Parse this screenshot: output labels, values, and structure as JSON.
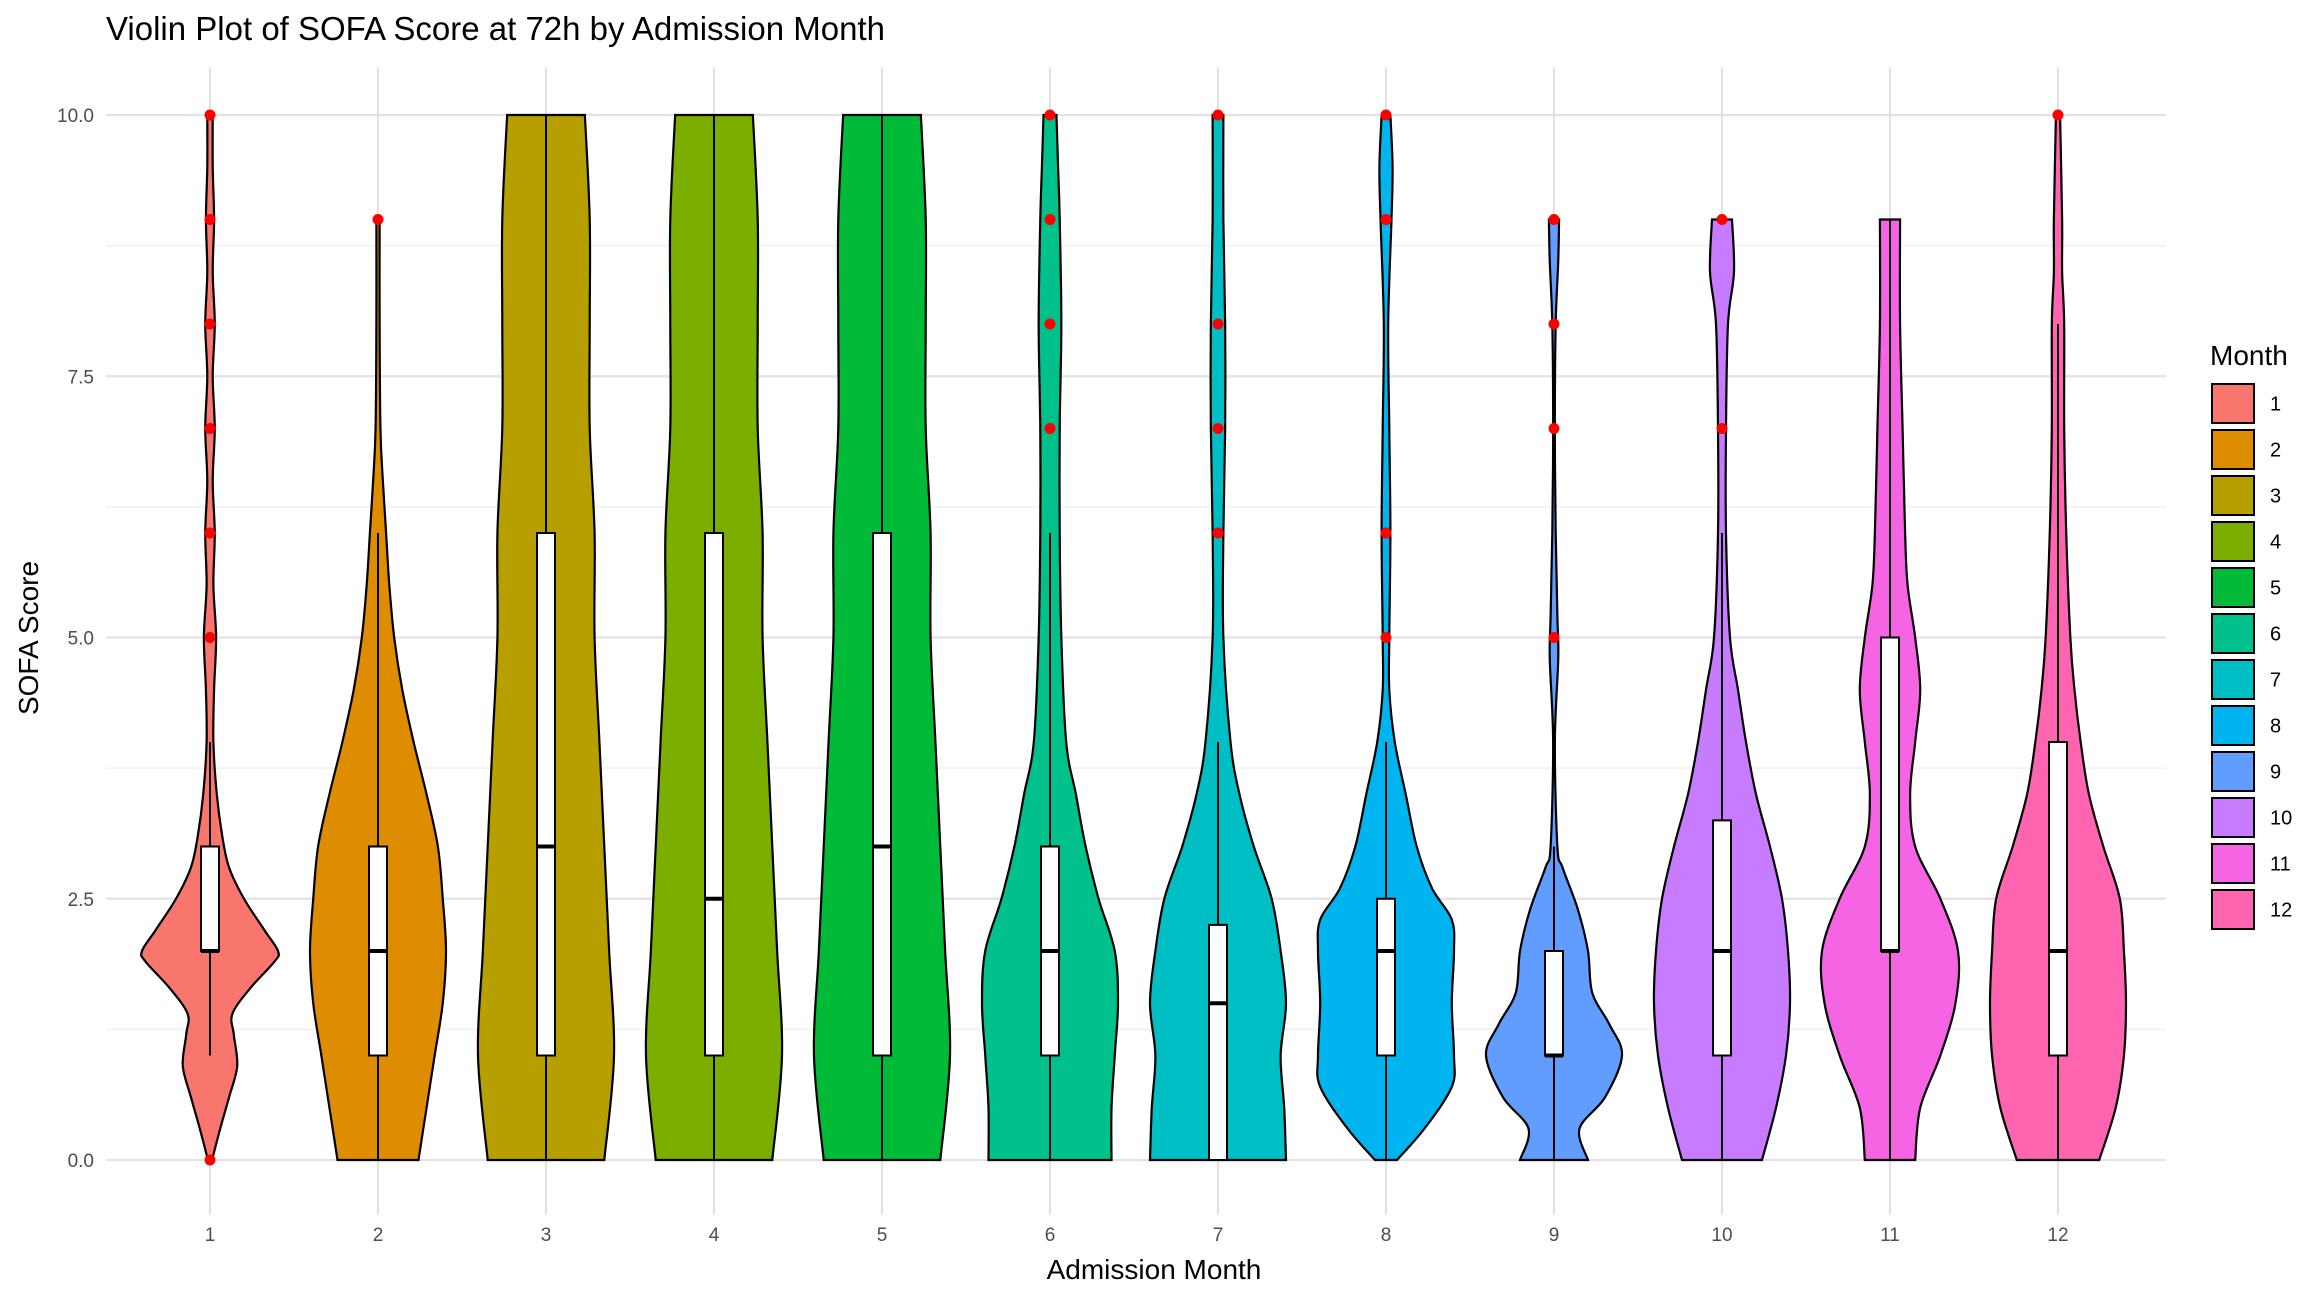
{
  "chart_data": {
    "type": "violin",
    "title": "Violin Plot of SOFA Score at 72h by Admission Month",
    "xlabel": "Admission Month",
    "ylabel": "SOFA Score",
    "ylim": [
      -0.7,
      10.45
    ],
    "y_ticks": [
      "0.0",
      "2.5",
      "5.0",
      "7.5",
      "10.0"
    ],
    "y_tick_values": [
      0,
      2.5,
      5,
      7.5,
      10
    ],
    "grid": true,
    "legend": {
      "title": "Month",
      "position": "right",
      "entries": [
        "1",
        "2",
        "3",
        "4",
        "5",
        "6",
        "7",
        "8",
        "9",
        "10",
        "11",
        "12"
      ]
    },
    "outlier_color": "#ff0000",
    "series": [
      {
        "category": "1",
        "color": "#F8766D",
        "box": {
          "min": 1,
          "q1": 2,
          "median": 2,
          "q3": 3,
          "max": 4
        },
        "outliers": [
          0,
          5,
          6,
          7,
          8,
          9,
          10
        ],
        "density": [
          [
            0,
            0.03
          ],
          [
            0.3,
            0.15
          ],
          [
            0.6,
            0.28
          ],
          [
            0.9,
            0.4
          ],
          [
            1.2,
            0.35
          ],
          [
            1.4,
            0.33
          ],
          [
            1.65,
            0.6
          ],
          [
            1.9,
            0.95
          ],
          [
            2.0,
            1.0
          ],
          [
            2.2,
            0.8
          ],
          [
            2.5,
            0.5
          ],
          [
            2.8,
            0.28
          ],
          [
            3.1,
            0.18
          ],
          [
            3.5,
            0.1
          ],
          [
            4.0,
            0.05
          ],
          [
            4.5,
            0.06
          ],
          [
            5.0,
            0.09
          ],
          [
            5.5,
            0.05
          ],
          [
            6.0,
            0.07
          ],
          [
            6.5,
            0.04
          ],
          [
            7.0,
            0.07
          ],
          [
            7.5,
            0.04
          ],
          [
            8.0,
            0.07
          ],
          [
            8.5,
            0.04
          ],
          [
            9.0,
            0.06
          ],
          [
            9.5,
            0.04
          ],
          [
            10,
            0.04
          ]
        ]
      },
      {
        "category": "2",
        "color": "#DE8C00",
        "box": {
          "min": 0,
          "q1": 1,
          "median": 2,
          "q3": 3,
          "max": 6
        },
        "outliers": [
          9
        ],
        "density": [
          [
            0,
            0.25
          ],
          [
            0.5,
            0.3
          ],
          [
            1.0,
            0.35
          ],
          [
            1.5,
            0.4
          ],
          [
            2.0,
            0.42
          ],
          [
            2.5,
            0.4
          ],
          [
            3.0,
            0.37
          ],
          [
            3.5,
            0.3
          ],
          [
            4.0,
            0.22
          ],
          [
            4.5,
            0.15
          ],
          [
            5.0,
            0.1
          ],
          [
            5.5,
            0.07
          ],
          [
            6.0,
            0.05
          ],
          [
            6.5,
            0.03
          ],
          [
            7.0,
            0.015
          ],
          [
            8.0,
            0.01
          ],
          [
            9.0,
            0.01
          ]
        ]
      },
      {
        "category": "3",
        "color": "#B79F00",
        "box": {
          "min": 0,
          "q1": 1,
          "median": 3,
          "q3": 6,
          "max": 10
        },
        "outliers": [],
        "density": [
          [
            0,
            0.12
          ],
          [
            1,
            0.14
          ],
          [
            2,
            0.13
          ],
          [
            3,
            0.12
          ],
          [
            4,
            0.11
          ],
          [
            5,
            0.1
          ],
          [
            6,
            0.1
          ],
          [
            7,
            0.09
          ],
          [
            8,
            0.09
          ],
          [
            9,
            0.09
          ],
          [
            10,
            0.08
          ]
        ]
      },
      {
        "category": "4",
        "color": "#7CAE00",
        "box": {
          "min": 0,
          "q1": 1,
          "median": 2.5,
          "q3": 6,
          "max": 10
        },
        "outliers": [],
        "density": [
          [
            0,
            0.12
          ],
          [
            1,
            0.14
          ],
          [
            2,
            0.13
          ],
          [
            3,
            0.12
          ],
          [
            4,
            0.11
          ],
          [
            5,
            0.1
          ],
          [
            6,
            0.1
          ],
          [
            7,
            0.09
          ],
          [
            8,
            0.09
          ],
          [
            9,
            0.09
          ],
          [
            10,
            0.08
          ]
        ]
      },
      {
        "category": "5",
        "color": "#00BA38",
        "box": {
          "min": 0,
          "q1": 1,
          "median": 3,
          "q3": 6,
          "max": 10
        },
        "outliers": [],
        "density": [
          [
            0,
            0.12
          ],
          [
            1,
            0.14
          ],
          [
            2,
            0.13
          ],
          [
            3,
            0.12
          ],
          [
            4,
            0.11
          ],
          [
            5,
            0.1
          ],
          [
            6,
            0.1
          ],
          [
            7,
            0.09
          ],
          [
            8,
            0.09
          ],
          [
            9,
            0.09
          ],
          [
            10,
            0.08
          ]
        ]
      },
      {
        "category": "6",
        "color": "#00C08B",
        "box": {
          "min": 0,
          "q1": 1,
          "median": 2,
          "q3": 3,
          "max": 6
        },
        "outliers": [
          7,
          8,
          9,
          10
        ],
        "density": [
          [
            0,
            0.38
          ],
          [
            0.5,
            0.38
          ],
          [
            1.0,
            0.4
          ],
          [
            1.5,
            0.42
          ],
          [
            2.0,
            0.4
          ],
          [
            2.5,
            0.3
          ],
          [
            3.0,
            0.22
          ],
          [
            3.5,
            0.16
          ],
          [
            4.0,
            0.1
          ],
          [
            5.0,
            0.07
          ],
          [
            6.0,
            0.06
          ],
          [
            7.0,
            0.06
          ],
          [
            8.0,
            0.07
          ],
          [
            9.0,
            0.06
          ],
          [
            9.5,
            0.05
          ],
          [
            10,
            0.04
          ]
        ]
      },
      {
        "category": "7",
        "color": "#00BFC4",
        "box": {
          "min": 0,
          "q1": 0,
          "median": 1.5,
          "q3": 2.25,
          "max": 4
        },
        "outliers": [
          6,
          7,
          8,
          10
        ],
        "density": [
          [
            0,
            0.38
          ],
          [
            0.5,
            0.37
          ],
          [
            1.0,
            0.35
          ],
          [
            1.5,
            0.38
          ],
          [
            2.0,
            0.35
          ],
          [
            2.5,
            0.3
          ],
          [
            3.0,
            0.2
          ],
          [
            3.5,
            0.12
          ],
          [
            4.0,
            0.07
          ],
          [
            5.0,
            0.03
          ],
          [
            6.0,
            0.03
          ],
          [
            7.0,
            0.04
          ],
          [
            8.0,
            0.04
          ],
          [
            9.0,
            0.03
          ],
          [
            10,
            0.03
          ]
        ]
      },
      {
        "category": "8",
        "color": "#00B4F0",
        "box": {
          "min": 0,
          "q1": 1,
          "median": 2,
          "q3": 2.5,
          "max": 4
        },
        "outliers": [
          5,
          6,
          9,
          10
        ],
        "density": [
          [
            0,
            0.1
          ],
          [
            0.3,
            0.35
          ],
          [
            0.7,
            0.6
          ],
          [
            1.0,
            0.62
          ],
          [
            1.5,
            0.6
          ],
          [
            2.0,
            0.62
          ],
          [
            2.3,
            0.6
          ],
          [
            2.6,
            0.42
          ],
          [
            3.0,
            0.28
          ],
          [
            3.5,
            0.18
          ],
          [
            4.0,
            0.08
          ],
          [
            4.5,
            0.03
          ],
          [
            5.0,
            0.03
          ],
          [
            6.0,
            0.04
          ],
          [
            7.0,
            0.03
          ],
          [
            8.0,
            0.02
          ],
          [
            9.0,
            0.05
          ],
          [
            9.5,
            0.06
          ],
          [
            10,
            0.04
          ]
        ]
      },
      {
        "category": "9",
        "color": "#619CFF",
        "box": {
          "min": 0,
          "q1": 1,
          "median": 1,
          "q3": 2,
          "max": 3
        },
        "outliers": [
          5,
          7,
          8,
          9
        ],
        "density": [
          [
            0,
            0.4
          ],
          [
            0.3,
            0.3
          ],
          [
            0.6,
            0.6
          ],
          [
            1.0,
            0.8
          ],
          [
            1.3,
            0.65
          ],
          [
            1.6,
            0.45
          ],
          [
            2.0,
            0.4
          ],
          [
            2.4,
            0.28
          ],
          [
            2.8,
            0.1
          ],
          [
            3.0,
            0.04
          ],
          [
            4.0,
            0.01
          ],
          [
            4.8,
            0.05
          ],
          [
            5.2,
            0.04
          ],
          [
            6.0,
            0.02
          ],
          [
            7.0,
            0.01
          ],
          [
            8.0,
            0.02
          ],
          [
            8.6,
            0.05
          ],
          [
            9.0,
            0.06
          ]
        ]
      },
      {
        "category": "10",
        "color": "#C77CFF",
        "box": {
          "min": 0,
          "q1": 1,
          "median": 2,
          "q3": 3.25,
          "max": 6
        },
        "outliers": [
          7,
          9
        ],
        "density": [
          [
            0,
            0.2
          ],
          [
            0.5,
            0.27
          ],
          [
            1.0,
            0.32
          ],
          [
            1.5,
            0.34
          ],
          [
            2.0,
            0.33
          ],
          [
            2.5,
            0.3
          ],
          [
            3.0,
            0.24
          ],
          [
            3.5,
            0.17
          ],
          [
            4.0,
            0.12
          ],
          [
            4.5,
            0.08
          ],
          [
            5.0,
            0.04
          ],
          [
            6.0,
            0.02
          ],
          [
            7.0,
            0.02
          ],
          [
            8.0,
            0.03
          ],
          [
            8.5,
            0.06
          ],
          [
            9.0,
            0.05
          ]
        ]
      },
      {
        "category": "11",
        "color": "#F564E3",
        "box": {
          "min": 0,
          "q1": 2,
          "median": 2,
          "q3": 5,
          "max": 9
        },
        "outliers": [],
        "density": [
          [
            0,
            0.1
          ],
          [
            0.5,
            0.12
          ],
          [
            1.0,
            0.2
          ],
          [
            1.5,
            0.26
          ],
          [
            2.0,
            0.27
          ],
          [
            2.5,
            0.2
          ],
          [
            3.0,
            0.1
          ],
          [
            3.5,
            0.08
          ],
          [
            4.0,
            0.1
          ],
          [
            4.5,
            0.12
          ],
          [
            5.0,
            0.1
          ],
          [
            5.5,
            0.07
          ],
          [
            6.0,
            0.06
          ],
          [
            7.0,
            0.05
          ],
          [
            8.0,
            0.04
          ],
          [
            9.0,
            0.04
          ]
        ]
      },
      {
        "category": "12",
        "color": "#FF64B0",
        "box": {
          "min": 0,
          "q1": 1,
          "median": 2,
          "q3": 4,
          "max": 8
        },
        "outliers": [
          10
        ],
        "density": [
          [
            0,
            0.2
          ],
          [
            0.5,
            0.28
          ],
          [
            1.0,
            0.32
          ],
          [
            1.5,
            0.33
          ],
          [
            2.0,
            0.32
          ],
          [
            2.5,
            0.3
          ],
          [
            3.0,
            0.22
          ],
          [
            3.5,
            0.15
          ],
          [
            4.0,
            0.11
          ],
          [
            4.5,
            0.08
          ],
          [
            5.0,
            0.06
          ],
          [
            6.0,
            0.04
          ],
          [
            7.0,
            0.03
          ],
          [
            8.0,
            0.03
          ],
          [
            8.5,
            0.02
          ],
          [
            9.0,
            0.02
          ],
          [
            10,
            0.01
          ]
        ]
      }
    ]
  }
}
